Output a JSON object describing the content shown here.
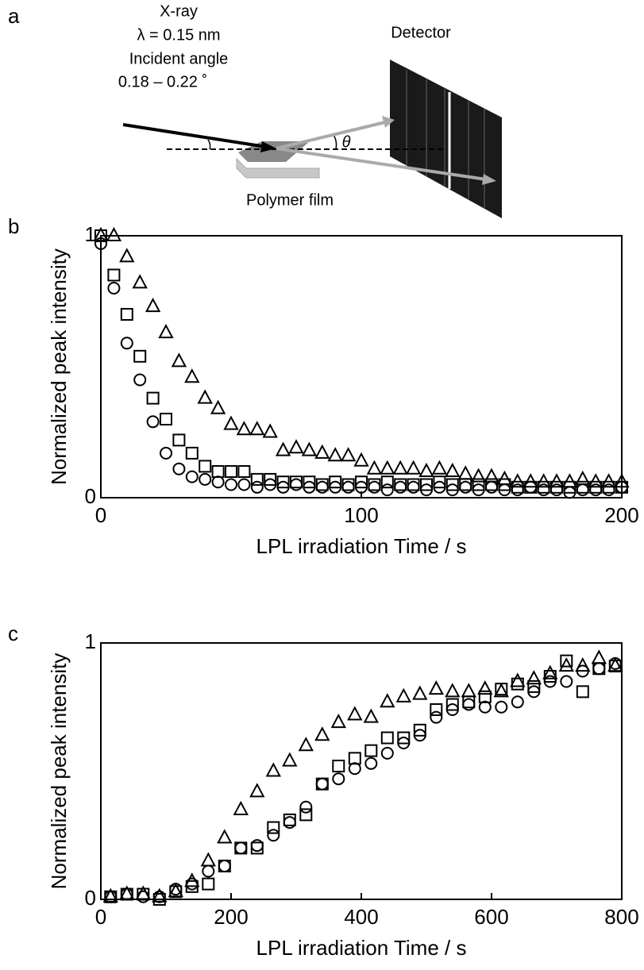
{
  "diagram": {
    "panel_label": "a",
    "xray": "X-ray",
    "wavelength": "λ = 0.15 nm",
    "angle_title": "Incident angle",
    "angle_range": "0.18 – 0.22 ˚",
    "detector": "Detector",
    "theta": "θ",
    "film": "Polymer film"
  },
  "chart_data": [
    {
      "type": "scatter",
      "panel_label": "b",
      "xlabel": "LPL irradiation Time / s",
      "ylabel": "Normalized peak intensity",
      "xlim": [
        0,
        200
      ],
      "ylim": [
        0,
        1
      ],
      "xticks": [
        0,
        100,
        200
      ],
      "yticks": [
        0,
        1
      ],
      "x": [
        0,
        5,
        10,
        15,
        20,
        25,
        30,
        35,
        40,
        45,
        50,
        55,
        60,
        65,
        70,
        75,
        80,
        85,
        90,
        95,
        100,
        105,
        110,
        115,
        120,
        125,
        130,
        135,
        140,
        145,
        150,
        155,
        160,
        165,
        170,
        175,
        180,
        185,
        190,
        195,
        200
      ],
      "series": [
        {
          "marker": "circle",
          "color": "#000000",
          "values": [
            0.97,
            0.8,
            0.59,
            0.45,
            0.29,
            0.17,
            0.11,
            0.08,
            0.07,
            0.06,
            0.05,
            0.05,
            0.04,
            0.05,
            0.04,
            0.05,
            0.04,
            0.04,
            0.04,
            0.04,
            0.04,
            0.04,
            0.03,
            0.04,
            0.04,
            0.03,
            0.04,
            0.03,
            0.04,
            0.03,
            0.04,
            0.03,
            0.03,
            0.04,
            0.03,
            0.03,
            0.02,
            0.03,
            0.03,
            0.03,
            0.04
          ]
        },
        {
          "marker": "square",
          "color": "#000000",
          "values": [
            1.0,
            0.85,
            0.7,
            0.54,
            0.38,
            0.3,
            0.22,
            0.17,
            0.12,
            0.1,
            0.1,
            0.1,
            0.07,
            0.07,
            0.06,
            0.06,
            0.06,
            0.05,
            0.06,
            0.05,
            0.06,
            0.05,
            0.06,
            0.05,
            0.05,
            0.05,
            0.06,
            0.05,
            0.05,
            0.05,
            0.05,
            0.05,
            0.04,
            0.04,
            0.04,
            0.04,
            0.04,
            0.04,
            0.04,
            0.04,
            0.04
          ]
        },
        {
          "marker": "triangle",
          "color": "#000000",
          "values": [
            1.0,
            1.0,
            0.92,
            0.82,
            0.73,
            0.63,
            0.52,
            0.46,
            0.38,
            0.34,
            0.28,
            0.26,
            0.26,
            0.25,
            0.18,
            0.19,
            0.18,
            0.17,
            0.16,
            0.16,
            0.14,
            0.11,
            0.11,
            0.11,
            0.11,
            0.1,
            0.11,
            0.1,
            0.09,
            0.08,
            0.08,
            0.07,
            0.06,
            0.06,
            0.06,
            0.06,
            0.06,
            0.07,
            0.06,
            0.06,
            0.06
          ]
        }
      ]
    },
    {
      "type": "scatter",
      "panel_label": "c",
      "xlabel": "LPL irradiation Time / s",
      "ylabel": "Normalized peak intensity",
      "xlim": [
        0,
        800
      ],
      "ylim": [
        0,
        1
      ],
      "xticks": [
        0,
        200,
        400,
        600,
        800
      ],
      "yticks": [
        0,
        1
      ],
      "x": [
        15,
        40,
        65,
        90,
        115,
        140,
        165,
        190,
        215,
        240,
        265,
        290,
        315,
        340,
        365,
        390,
        415,
        440,
        465,
        490,
        515,
        540,
        565,
        590,
        615,
        640,
        665,
        690,
        715,
        740,
        765,
        790
      ],
      "series": [
        {
          "marker": "circle",
          "color": "#000000",
          "values": [
            0.01,
            0.02,
            0.01,
            0.01,
            0.04,
            0.06,
            0.11,
            0.13,
            0.2,
            0.21,
            0.25,
            0.3,
            0.36,
            0.45,
            0.47,
            0.51,
            0.53,
            0.57,
            0.61,
            0.64,
            0.71,
            0.74,
            0.76,
            0.75,
            0.75,
            0.77,
            0.81,
            0.85,
            0.85,
            0.89,
            0.9,
            0.92
          ]
        },
        {
          "marker": "square",
          "color": "#000000",
          "values": [
            0.01,
            0.02,
            0.02,
            0.0,
            0.03,
            0.05,
            0.06,
            0.13,
            0.2,
            0.2,
            0.28,
            0.31,
            0.33,
            0.45,
            0.52,
            0.55,
            0.58,
            0.63,
            0.63,
            0.66,
            0.74,
            0.76,
            0.77,
            0.79,
            0.82,
            0.84,
            0.83,
            0.87,
            0.93,
            0.81,
            0.9,
            0.91
          ]
        },
        {
          "marker": "triangle",
          "color": "#000000",
          "values": [
            0.01,
            0.02,
            0.02,
            0.01,
            0.03,
            0.07,
            0.15,
            0.24,
            0.35,
            0.42,
            0.5,
            0.54,
            0.6,
            0.64,
            0.69,
            0.72,
            0.71,
            0.77,
            0.79,
            0.8,
            0.82,
            0.81,
            0.81,
            0.82,
            0.81,
            0.85,
            0.86,
            0.88,
            0.91,
            0.91,
            0.94,
            0.91
          ]
        }
      ]
    }
  ]
}
